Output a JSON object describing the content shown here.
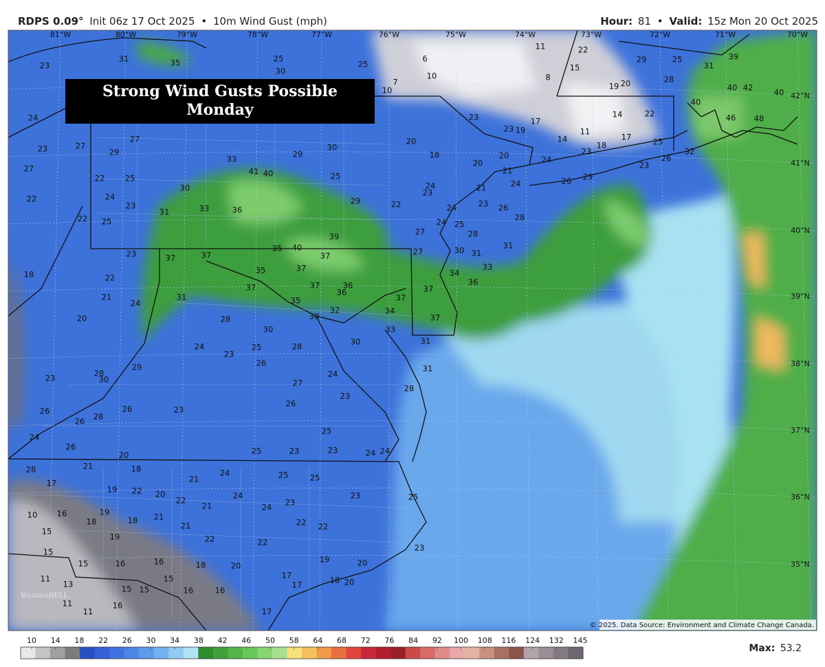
{
  "header": {
    "model": "RDPS 0.09°",
    "init": "Init 06z 17 Oct 2025",
    "separator": "•",
    "field": "10m Wind Gust (mph)",
    "hour_label": "Hour:",
    "hour": "81",
    "valid_label": "Valid:",
    "valid": "15z Mon 20 Oct 2025"
  },
  "title_box": [
    "Strong Wind Gusts Possible",
    "Monday"
  ],
  "longitudes": [
    "81°W",
    "80°W",
    "79°W",
    "78°W",
    "77°W",
    "76°W",
    "75°W",
    "74°W",
    "73°W",
    "72°W",
    "71°W",
    "70°W"
  ],
  "latitudes": [
    "42°N",
    "41°N",
    "40°N",
    "39°N",
    "38°N",
    "37°N",
    "36°N",
    "35°N"
  ],
  "gust_labels": [
    31,
    23,
    35,
    25,
    30,
    25,
    6,
    11,
    22,
    15,
    29,
    25,
    31,
    28,
    39,
    40,
    42,
    40,
    10,
    10,
    7,
    8,
    19,
    20,
    14,
    11,
    22,
    17,
    25,
    23,
    18,
    23,
    26,
    40,
    46,
    48,
    32,
    24,
    23,
    27,
    27,
    22,
    22,
    27,
    29,
    25,
    22,
    24,
    23,
    25,
    31,
    30,
    33,
    33,
    41,
    40,
    29,
    30,
    25,
    29,
    22,
    20,
    18,
    23,
    23,
    19,
    17,
    14,
    20,
    24,
    20,
    21,
    24,
    26,
    29,
    24,
    23,
    21,
    23,
    24,
    26,
    28,
    24,
    25,
    28,
    27,
    36,
    39,
    35,
    40,
    37,
    37,
    37,
    35,
    37,
    23,
    18,
    22,
    21,
    24,
    20,
    31,
    37,
    37,
    36,
    35,
    36,
    37,
    37,
    34,
    36,
    37,
    30,
    31,
    33,
    31,
    27,
    32,
    30,
    33,
    34,
    28,
    30,
    24,
    25,
    23,
    26,
    28,
    30,
    31,
    31,
    23,
    28,
    30,
    29,
    24,
    27,
    23,
    26,
    23,
    26,
    26,
    28,
    26,
    24,
    26,
    20,
    25,
    23,
    23,
    24,
    24,
    25,
    28,
    21,
    18,
    28,
    17,
    24,
    25,
    25,
    21,
    19,
    22,
    20,
    24,
    22,
    21,
    24,
    23,
    23,
    25,
    10,
    16,
    19,
    18,
    18,
    21,
    21,
    22,
    22,
    15,
    19,
    22,
    22,
    23,
    15,
    15,
    16,
    16,
    18,
    20,
    19,
    20,
    17,
    15,
    11,
    13,
    15,
    15,
    16,
    16,
    17,
    18,
    20,
    16,
    11,
    11,
    17
  ],
  "watermark": "WeatherBELL",
  "copyright": "© 2025. Data Source: Environment and Climate Change Canada.",
  "colorbar": {
    "labels": [
      10,
      14,
      18,
      22,
      26,
      30,
      34,
      38,
      42,
      46,
      50,
      58,
      64,
      68,
      72,
      76,
      84,
      92,
      100,
      108,
      116,
      124,
      132,
      145
    ],
    "colors": [
      "#e8e8e8",
      "#c4c4c4",
      "#a0a0a0",
      "#7c7c7c",
      "#2a4fc2",
      "#3461d6",
      "#3f72e0",
      "#4d86e6",
      "#5d9aec",
      "#73b0f0",
      "#93cbf4",
      "#b3e2f6",
      "#2e8c2e",
      "#3ea23a",
      "#52b546",
      "#69c65a",
      "#86d572",
      "#a8e08e",
      "#f6e27a",
      "#f5c060",
      "#f19a48",
      "#ea7040",
      "#e0463a",
      "#c8283a",
      "#b0202e",
      "#982028",
      "#cc4a4a",
      "#d86a6a",
      "#e08a8a",
      "#e8a8a8",
      "#e4b4a4",
      "#c89080",
      "#a87060",
      "#8a5448",
      "#b0a4a8",
      "#9a8e94",
      "#847a82",
      "#6e6670"
    ],
    "max_label": "Max:",
    "max": "53.2"
  }
}
